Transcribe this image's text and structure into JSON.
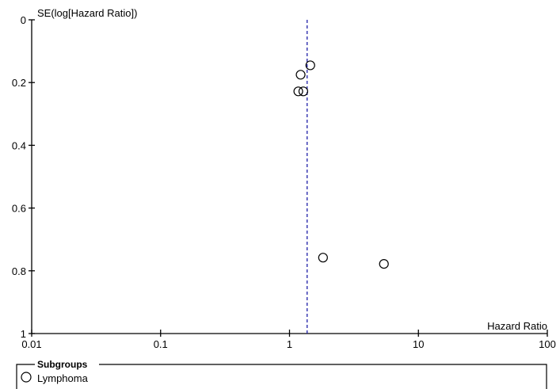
{
  "chart_data": {
    "type": "scatter",
    "title": "",
    "xlabel": "Hazard Ratio",
    "ylabel": "SE(log[Hazard Ratio])",
    "x_scale": "log",
    "y_reversed": true,
    "xlim": [
      0.01,
      100
    ],
    "ylim": [
      0,
      1
    ],
    "x_ticks": [
      0.01,
      0.1,
      1,
      10,
      100
    ],
    "x_tick_labels": [
      "0.01",
      "0.1",
      "1",
      "10",
      "100"
    ],
    "y_ticks": [
      0,
      0.2,
      0.4,
      0.6,
      0.8,
      1
    ],
    "y_tick_labels": [
      "0",
      "0.2",
      "0.4",
      "0.6",
      "0.8",
      "1"
    ],
    "reference_line": {
      "x": 1.37,
      "style": "dashed",
      "color": "#1f1fa8"
    },
    "grid": false,
    "series": [
      {
        "name": "Lymphoma",
        "marker": "open-circle",
        "points": [
          {
            "x": 1.45,
            "y": 0.145
          },
          {
            "x": 1.22,
            "y": 0.175
          },
          {
            "x": 1.17,
            "y": 0.228
          },
          {
            "x": 1.28,
            "y": 0.228
          },
          {
            "x": 1.82,
            "y": 0.758
          },
          {
            "x": 5.4,
            "y": 0.778
          }
        ]
      }
    ],
    "legend": {
      "title": "Subgroups",
      "placement": "bottom",
      "entries": [
        "Lymphoma"
      ]
    }
  }
}
